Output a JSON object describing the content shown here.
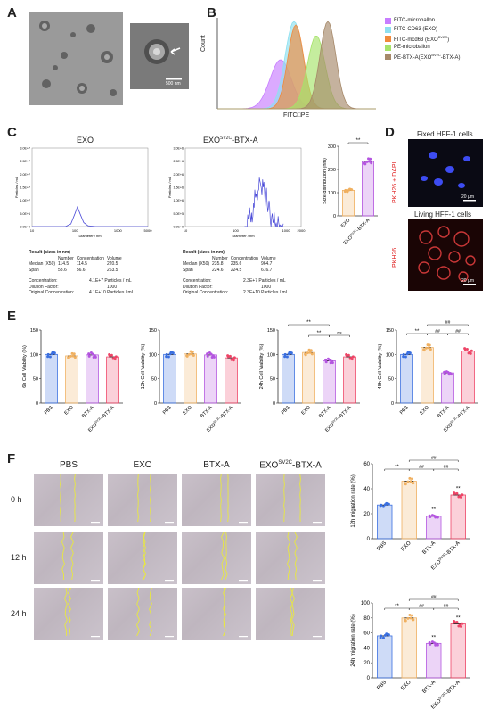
{
  "panels": {
    "A": "A",
    "B": "B",
    "C": "C",
    "D": "D",
    "E": "E",
    "F": "F"
  },
  "panelA": {
    "scalebar": "500 nm"
  },
  "panelB": {
    "xlabel": "FITC□PE",
    "ylabel": "Count",
    "legend": [
      {
        "label": "FITC-microballon",
        "color": "#c77dff"
      },
      {
        "label": "FITC-CD63 (EXO)",
        "color": "#8ee0f0"
      },
      {
        "label": "FITC-mcd63 (EXO^BV2C)",
        "color": "#f08a3c"
      },
      {
        "label": "PE-microballon",
        "color": "#a6e36a"
      },
      {
        "label": "PE-BTX-A(EXO^BV2C-BTX-A)",
        "color": "#a6896a"
      }
    ]
  },
  "panelC": {
    "exo": {
      "title": "EXO",
      "xlabel": "Diameter / nm",
      "ylabel": "Particles / mL",
      "yticks": [
        "3.0E+7",
        "2.5E+7",
        "2.0E+7",
        "1.5E+7",
        "1.0E+7",
        "5.0E+6",
        "0.0E+0"
      ],
      "xticks": [
        "10",
        "100",
        "1000",
        "5000"
      ],
      "table_title": "Result (sizes in nm)",
      "headers": [
        "",
        "Number",
        "Concentration",
        "Volume"
      ],
      "rows": [
        [
          "Median (X50)",
          "114.5",
          "114.5",
          "220.5"
        ],
        [
          "Span",
          "58.6",
          "56.6",
          "263.5"
        ]
      ],
      "concentration": "Concentration:",
      "concentration_val": "4.1E+7 Particles / mL",
      "dilution": "Dilution Factor:",
      "dilution_val": "1000",
      "original": "Original Concentration:",
      "original_val": "4.1E+10 Particles / mL"
    },
    "exobtx": {
      "title": "EXO",
      "title_sup": "SV2C",
      "title_rest": "-BTX-A",
      "xlabel": "Diameter / nm",
      "ylabel": "Particles / mL",
      "yticks": [
        "3.0E+6",
        "2.5E+6",
        "2.0E+6",
        "1.5E+6",
        "1.0E+6",
        "5.0E+5",
        "0.0E+0"
      ],
      "xticks": [
        "10",
        "100",
        "1000",
        "2000"
      ],
      "table_title": "Result (sizes in nm)",
      "headers": [
        "",
        "Number",
        "Concentration",
        "Volume"
      ],
      "rows": [
        [
          "Median (X50)",
          "235.8",
          "235.6",
          "964.7"
        ],
        [
          "Span",
          "224.6",
          "224.5",
          "616.7"
        ]
      ],
      "concentration": "Concentration:",
      "concentration_val": "2.3E+7 Particles / mL",
      "dilution": "Dilution Factor:",
      "dilution_val": "1000",
      "original": "Original Concentration:",
      "original_val": "2.3E+10 Particles / mL"
    },
    "bar": {
      "ylabel": "Size distribution (nm)",
      "sig": "**",
      "yticks": [
        "300",
        "200",
        "100",
        "0"
      ]
    }
  },
  "panelD": {
    "fixed_title": "Fixed HFF-1 cells",
    "living_title": "Living HFF-1 cells",
    "fixed_label": "PKH26 + DAPI",
    "living_label": "PKH26",
    "scale": "20 μm"
  },
  "panelE": {
    "ylabels": [
      "6h Cell Viability (%)",
      "12h Cell Viability (%)",
      "24h Cell Viability (%)",
      "48h Cell Viability (%)"
    ],
    "yticks": [
      "150",
      "100",
      "50",
      "0"
    ],
    "sig24": [
      "**",
      "**",
      "ns"
    ],
    "sig48": [
      "**",
      "##",
      "##",
      "##"
    ]
  },
  "panelF": {
    "columns": [
      "PBS",
      "EXO",
      "BTX-A",
      "EXO^SV2C-BTX-A"
    ],
    "rows": [
      "0 h",
      "12 h",
      "24 h"
    ],
    "ylabel12": "12h migration rate (%)",
    "ylabel24": "24h migration rate (%)",
    "yticks12": [
      "60",
      "40",
      "20",
      "0"
    ],
    "yticks24": [
      "100",
      "80",
      "60",
      "40",
      "20",
      "0"
    ],
    "sig": [
      "**",
      "##",
      "##",
      "##",
      "**",
      "**"
    ]
  },
  "groups": [
    "PBS",
    "EXO",
    "BTX-A",
    "EXO^SV2C-BTX-A"
  ],
  "chart_data": [
    {
      "type": "line",
      "title": "EXO",
      "xlabel": "Diameter / nm",
      "ylabel": "Particles / mL",
      "x": [
        10,
        60,
        80,
        100,
        114,
        130,
        160,
        200,
        300,
        1000,
        5000
      ],
      "y": [
        0,
        0,
        1000000.0,
        5000000.0,
        7500000.0,
        5000000.0,
        1500000.0,
        300000.0,
        0,
        0,
        0
      ]
    },
    {
      "type": "line",
      "title": "EXO SV2C-BTX-A",
      "xlabel": "Diameter / nm",
      "ylabel": "Particles / mL",
      "x": [
        10,
        100,
        150,
        200,
        236,
        300,
        400,
        600,
        1000,
        2000
      ],
      "y": [
        0,
        0,
        300000.0,
        800000.0,
        1200000.0,
        1700000.0,
        1100000.0,
        400000.0,
        0,
        0
      ]
    },
    {
      "type": "bar",
      "ylabel": "Size distribution (nm)",
      "categories": [
        "EXO",
        "EXO SV2C-BTX-A"
      ],
      "values": [
        110,
        235
      ],
      "ylim": [
        0,
        300
      ]
    },
    {
      "type": "bar",
      "ylabel": "6h Cell Viability (%)",
      "categories": [
        "PBS",
        "EXO",
        "BTX-A",
        "EXO SV2C-BTX-A"
      ],
      "values": [
        100,
        97,
        99,
        95
      ],
      "ylim": [
        0,
        150
      ]
    },
    {
      "type": "bar",
      "ylabel": "12h Cell Viability (%)",
      "categories": [
        "PBS",
        "EXO",
        "BTX-A",
        "EXO SV2C-BTX-A"
      ],
      "values": [
        100,
        101,
        99,
        93
      ],
      "ylim": [
        0,
        150
      ]
    },
    {
      "type": "bar",
      "ylabel": "24h Cell Viability (%)",
      "categories": [
        "PBS",
        "EXO",
        "BTX-A",
        "EXO SV2C-BTX-A"
      ],
      "values": [
        100,
        104,
        87,
        95
      ],
      "ylim": [
        0,
        150
      ]
    },
    {
      "type": "bar",
      "ylabel": "48h Cell Viability (%)",
      "categories": [
        "PBS",
        "EXO",
        "BTX-A",
        "EXO SV2C-BTX-A"
      ],
      "values": [
        100,
        114,
        62,
        107
      ],
      "ylim": [
        0,
        150
      ]
    },
    {
      "type": "bar",
      "ylabel": "12h migration rate (%)",
      "categories": [
        "PBS",
        "EXO",
        "BTX-A",
        "EXO SV2C-BTX-A"
      ],
      "values": [
        27,
        46,
        18,
        35
      ],
      "ylim": [
        0,
        60
      ]
    },
    {
      "type": "bar",
      "ylabel": "24h migration rate (%)",
      "categories": [
        "PBS",
        "EXO",
        "BTX-A",
        "EXO SV2C-BTX-A"
      ],
      "values": [
        56,
        80,
        46,
        72
      ],
      "ylim": [
        0,
        100
      ]
    }
  ],
  "colors": {
    "pbs": "#3a6fe0",
    "exo": "#f0b060",
    "btx": "#b455e0",
    "exobtx": "#ee4466"
  }
}
